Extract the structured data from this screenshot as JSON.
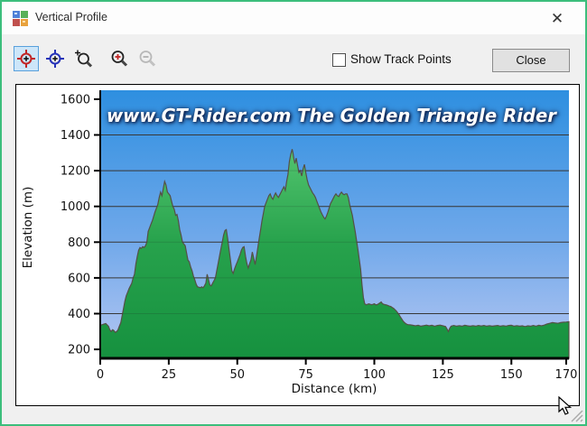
{
  "window": {
    "title": "Vertical Profile",
    "close_glyph": "✕"
  },
  "toolbar": {
    "buttons": [
      {
        "name": "select-point-red",
        "selected": true
      },
      {
        "name": "select-point-blue",
        "selected": false
      },
      {
        "name": "zoom-tool",
        "selected": false
      },
      {
        "name": "zoom-in",
        "selected": false
      },
      {
        "name": "zoom-out",
        "selected": false,
        "disabled": true
      }
    ],
    "show_track_points_label": "Show Track Points",
    "show_track_points_checked": false,
    "close_button_label": "Close"
  },
  "chart_data": {
    "type": "area",
    "watermark": "www.GT-Rider.com  The Golden Triangle Rider",
    "xlabel": "Distance   (km)",
    "ylabel": "Elevation (m)",
    "xlim": [
      0,
      171
    ],
    "ylim": [
      150,
      1650
    ],
    "x_ticks": [
      0,
      25,
      50,
      75,
      100,
      125,
      150,
      170
    ],
    "y_ticks": [
      200,
      400,
      600,
      800,
      1000,
      1200,
      1400,
      1600
    ],
    "gridlines": [
      400,
      600,
      800,
      1000,
      1200,
      1400
    ],
    "grid_on": true,
    "colors": {
      "sky_top": "#2e8fe0",
      "sky_bottom": "#b6c7f2",
      "fill_top": "#52c46e",
      "fill_mid": "#27a24c",
      "fill_bottom": "#16913f",
      "outline": "#555046",
      "grid": "#3f3f3f",
      "axis": "#000000"
    },
    "profile": [
      [
        0,
        335
      ],
      [
        1,
        340
      ],
      [
        2,
        345
      ],
      [
        3,
        330
      ],
      [
        3.5,
        310
      ],
      [
        4,
        300
      ],
      [
        4.5,
        310
      ],
      [
        5,
        305
      ],
      [
        5.5,
        295
      ],
      [
        6,
        300
      ],
      [
        6.5,
        310
      ],
      [
        7,
        330
      ],
      [
        7.5,
        350
      ],
      [
        8,
        390
      ],
      [
        8.5,
        430
      ],
      [
        9,
        470
      ],
      [
        9.5,
        500
      ],
      [
        10,
        520
      ],
      [
        10.5,
        540
      ],
      [
        11,
        555
      ],
      [
        11.5,
        570
      ],
      [
        12,
        600
      ],
      [
        12.5,
        620
      ],
      [
        13,
        680
      ],
      [
        13.5,
        720
      ],
      [
        14,
        755
      ],
      [
        14.5,
        770
      ],
      [
        15,
        765
      ],
      [
        15.5,
        775
      ],
      [
        16,
        770
      ],
      [
        16.5,
        780
      ],
      [
        17,
        800
      ],
      [
        17.5,
        860
      ],
      [
        18,
        880
      ],
      [
        18.5,
        900
      ],
      [
        19,
        920
      ],
      [
        19.5,
        945
      ],
      [
        20,
        970
      ],
      [
        20.5,
        990
      ],
      [
        21,
        1010
      ],
      [
        21.5,
        1050
      ],
      [
        22,
        1080
      ],
      [
        22.5,
        1060
      ],
      [
        23,
        1100
      ],
      [
        23.5,
        1140
      ],
      [
        24,
        1120
      ],
      [
        24.5,
        1080
      ],
      [
        25,
        1070
      ],
      [
        25.5,
        1060
      ],
      [
        26,
        1030
      ],
      [
        26.5,
        1000
      ],
      [
        27,
        985
      ],
      [
        27.5,
        950
      ],
      [
        28,
        955
      ],
      [
        28.5,
        920
      ],
      [
        29,
        870
      ],
      [
        29.5,
        840
      ],
      [
        30,
        800
      ],
      [
        30.5,
        790
      ],
      [
        31,
        780
      ],
      [
        31.5,
        740
      ],
      [
        32,
        700
      ],
      [
        32.5,
        690
      ],
      [
        33,
        660
      ],
      [
        33.5,
        640
      ],
      [
        34,
        610
      ],
      [
        34.5,
        590
      ],
      [
        35,
        565
      ],
      [
        35.5,
        550
      ],
      [
        36,
        548
      ],
      [
        36.5,
        545
      ],
      [
        37,
        550
      ],
      [
        37.5,
        545
      ],
      [
        38,
        555
      ],
      [
        38.5,
        570
      ],
      [
        39,
        620
      ],
      [
        39.5,
        590
      ],
      [
        40,
        560
      ],
      [
        40.5,
        555
      ],
      [
        41,
        570
      ],
      [
        41.5,
        585
      ],
      [
        42,
        600
      ],
      [
        42.5,
        640
      ],
      [
        43,
        680
      ],
      [
        43.5,
        720
      ],
      [
        44,
        760
      ],
      [
        44.5,
        800
      ],
      [
        45,
        840
      ],
      [
        45.5,
        865
      ],
      [
        46,
        870
      ],
      [
        46.5,
        820
      ],
      [
        47,
        760
      ],
      [
        47.5,
        700
      ],
      [
        48,
        640
      ],
      [
        48.5,
        625
      ],
      [
        49,
        650
      ],
      [
        49.5,
        670
      ],
      [
        50,
        690
      ],
      [
        50.5,
        710
      ],
      [
        51,
        730
      ],
      [
        51.5,
        755
      ],
      [
        52,
        770
      ],
      [
        52.5,
        775
      ],
      [
        53,
        720
      ],
      [
        53.5,
        680
      ],
      [
        54,
        655
      ],
      [
        54.5,
        680
      ],
      [
        55,
        700
      ],
      [
        55.5,
        745
      ],
      [
        56,
        710
      ],
      [
        56.5,
        675
      ],
      [
        57,
        720
      ],
      [
        57.5,
        770
      ],
      [
        58,
        820
      ],
      [
        58.5,
        870
      ],
      [
        59,
        920
      ],
      [
        59.5,
        960
      ],
      [
        60,
        1000
      ],
      [
        60.5,
        1020
      ],
      [
        61,
        1040
      ],
      [
        61.5,
        1060
      ],
      [
        62,
        1070
      ],
      [
        62.5,
        1050
      ],
      [
        63,
        1040
      ],
      [
        63.5,
        1060
      ],
      [
        64,
        1075
      ],
      [
        64.5,
        1060
      ],
      [
        65,
        1050
      ],
      [
        65.5,
        1065
      ],
      [
        66,
        1080
      ],
      [
        66.5,
        1095
      ],
      [
        67,
        1110
      ],
      [
        67.5,
        1090
      ],
      [
        68,
        1140
      ],
      [
        68.5,
        1180
      ],
      [
        69,
        1250
      ],
      [
        69.5,
        1290
      ],
      [
        70,
        1320
      ],
      [
        70.3,
        1300
      ],
      [
        70.6,
        1270
      ],
      [
        71,
        1240
      ],
      [
        71.5,
        1270
      ],
      [
        72,
        1230
      ],
      [
        72.5,
        1190
      ],
      [
        73,
        1200
      ],
      [
        73.5,
        1170
      ],
      [
        74,
        1210
      ],
      [
        74.5,
        1235
      ],
      [
        75,
        1190
      ],
      [
        75.5,
        1150
      ],
      [
        76,
        1120
      ],
      [
        76.5,
        1105
      ],
      [
        77,
        1090
      ],
      [
        77.5,
        1075
      ],
      [
        78,
        1065
      ],
      [
        78.5,
        1050
      ],
      [
        79,
        1030
      ],
      [
        79.5,
        1010
      ],
      [
        80,
        990
      ],
      [
        80.5,
        970
      ],
      [
        81,
        955
      ],
      [
        81.5,
        940
      ],
      [
        82,
        930
      ],
      [
        82.5,
        945
      ],
      [
        83,
        965
      ],
      [
        83.5,
        990
      ],
      [
        84,
        1015
      ],
      [
        84.5,
        1030
      ],
      [
        85,
        1045
      ],
      [
        85.5,
        1060
      ],
      [
        86,
        1070
      ],
      [
        86.5,
        1060
      ],
      [
        87,
        1055
      ],
      [
        87.5,
        1070
      ],
      [
        88,
        1080
      ],
      [
        88.5,
        1070
      ],
      [
        89,
        1065
      ],
      [
        89.5,
        1070
      ],
      [
        90,
        1070
      ],
      [
        90.5,
        1050
      ],
      [
        91,
        1010
      ],
      [
        91.5,
        980
      ],
      [
        92,
        950
      ],
      [
        92.5,
        905
      ],
      [
        93,
        860
      ],
      [
        93.5,
        810
      ],
      [
        94,
        760
      ],
      [
        94.5,
        705
      ],
      [
        95,
        650
      ],
      [
        95.5,
        560
      ],
      [
        96,
        490
      ],
      [
        96.5,
        455
      ],
      [
        97,
        450
      ],
      [
        97.5,
        452
      ],
      [
        98,
        455
      ],
      [
        98.5,
        452
      ],
      [
        99,
        450
      ],
      [
        99.5,
        452
      ],
      [
        100,
        455
      ],
      [
        100.5,
        450
      ],
      [
        101,
        450
      ],
      [
        101.5,
        455
      ],
      [
        102,
        460
      ],
      [
        102.5,
        465
      ],
      [
        103,
        455
      ],
      [
        103.5,
        452
      ],
      [
        104,
        450
      ],
      [
        104.5,
        448
      ],
      [
        105,
        445
      ],
      [
        105.5,
        442
      ],
      [
        106,
        440
      ],
      [
        106.5,
        435
      ],
      [
        107,
        430
      ],
      [
        107.5,
        422
      ],
      [
        108,
        415
      ],
      [
        108.5,
        405
      ],
      [
        109,
        395
      ],
      [
        109.5,
        382
      ],
      [
        110,
        370
      ],
      [
        110.5,
        358
      ],
      [
        111,
        350
      ],
      [
        111.5,
        344
      ],
      [
        112,
        340
      ],
      [
        112.5,
        338
      ],
      [
        113,
        338
      ],
      [
        114,
        335
      ],
      [
        115,
        332
      ],
      [
        116,
        335
      ],
      [
        117,
        330
      ],
      [
        118,
        333
      ],
      [
        119,
        336
      ],
      [
        120,
        332
      ],
      [
        121,
        335
      ],
      [
        122,
        330
      ],
      [
        123,
        334
      ],
      [
        124,
        336
      ],
      [
        125,
        332
      ],
      [
        126,
        328
      ],
      [
        126.5,
        315
      ],
      [
        127,
        300
      ],
      [
        127.5,
        318
      ],
      [
        128,
        330
      ],
      [
        129,
        334
      ],
      [
        130,
        330
      ],
      [
        131,
        333
      ],
      [
        132,
        330
      ],
      [
        133,
        335
      ],
      [
        134,
        332
      ],
      [
        135,
        330
      ],
      [
        136,
        333
      ],
      [
        137,
        330
      ],
      [
        138,
        334
      ],
      [
        139,
        331
      ],
      [
        140,
        334
      ],
      [
        141,
        330
      ],
      [
        142,
        333
      ],
      [
        143,
        330
      ],
      [
        144,
        332
      ],
      [
        145,
        334
      ],
      [
        146,
        330
      ],
      [
        147,
        333
      ],
      [
        148,
        330
      ],
      [
        149,
        334
      ],
      [
        150,
        335
      ],
      [
        151,
        330
      ],
      [
        152,
        333
      ],
      [
        153,
        330
      ],
      [
        154,
        332
      ],
      [
        155,
        328
      ],
      [
        156,
        332
      ],
      [
        157,
        330
      ],
      [
        158,
        334
      ],
      [
        159,
        330
      ],
      [
        160,
        335
      ],
      [
        161,
        332
      ],
      [
        162,
        336
      ],
      [
        163,
        342
      ],
      [
        164,
        346
      ],
      [
        165,
        350
      ],
      [
        166,
        348
      ],
      [
        167,
        346
      ],
      [
        168,
        350
      ],
      [
        169,
        352
      ],
      [
        170,
        353
      ],
      [
        171,
        355
      ]
    ]
  }
}
